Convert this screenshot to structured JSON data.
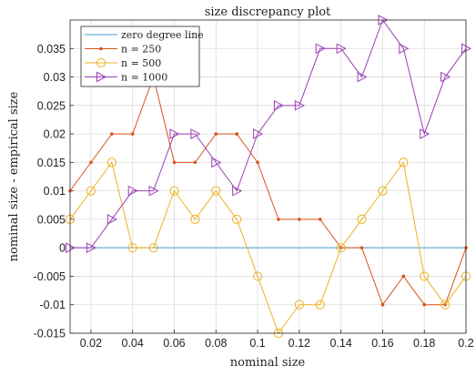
{
  "chart_data": {
    "type": "line",
    "title": "size discrepancy plot",
    "xlabel": "nominal size",
    "ylabel": "nominal size - empirical size",
    "xlim": [
      0.01,
      0.2
    ],
    "ylim": [
      -0.015,
      0.04
    ],
    "xticks": [
      "0.02",
      "0.04",
      "0.06",
      "0.08",
      "0.1",
      "0.12",
      "0.14",
      "0.16",
      "0.18",
      "0.2"
    ],
    "yticks": [
      "-0.015",
      "-0.01",
      "-0.005",
      "0",
      "0.005",
      "0.01",
      "0.015",
      "0.02",
      "0.025",
      "0.03",
      "0.035"
    ],
    "grid": true,
    "legend_position": "top-left",
    "x": [
      0.01,
      0.02,
      0.03,
      0.04,
      0.05,
      0.06,
      0.07,
      0.08,
      0.09,
      0.1,
      0.11,
      0.12,
      0.13,
      0.14,
      0.15,
      0.16,
      0.17,
      0.18,
      0.19,
      0.2
    ],
    "series": [
      {
        "name": "zero degree line",
        "color": "#4a9fd1",
        "marker": "none",
        "values": [
          0,
          0,
          0,
          0,
          0,
          0,
          0,
          0,
          0,
          0,
          0,
          0,
          0,
          0,
          0,
          0,
          0,
          0,
          0,
          0
        ]
      },
      {
        "name": "n = 250",
        "color": "#d95319",
        "marker": "dot",
        "values": [
          0.01,
          0.015,
          0.02,
          0.02,
          0.03,
          0.015,
          0.015,
          0.02,
          0.02,
          0.015,
          0.005,
          0.005,
          0.005,
          0.0,
          0.0,
          -0.01,
          -0.005,
          -0.01,
          -0.01,
          0.0
        ]
      },
      {
        "name": "n = 500",
        "color": "#edb120",
        "marker": "circle",
        "values": [
          0.005,
          0.01,
          0.015,
          0.0,
          0.0,
          0.01,
          0.005,
          0.01,
          0.005,
          -0.005,
          -0.015,
          -0.01,
          -0.01,
          0.0,
          0.005,
          0.01,
          0.015,
          -0.005,
          -0.01,
          -0.005
        ]
      },
      {
        "name": "n = 1000",
        "color": "#9b3fb5",
        "marker": "triangle-right",
        "values": [
          0.0,
          0.0,
          0.005,
          0.01,
          0.01,
          0.02,
          0.02,
          0.015,
          0.01,
          0.02,
          0.025,
          0.025,
          0.035,
          0.035,
          0.03,
          0.04,
          0.035,
          0.02,
          0.03,
          0.035
        ]
      }
    ]
  }
}
